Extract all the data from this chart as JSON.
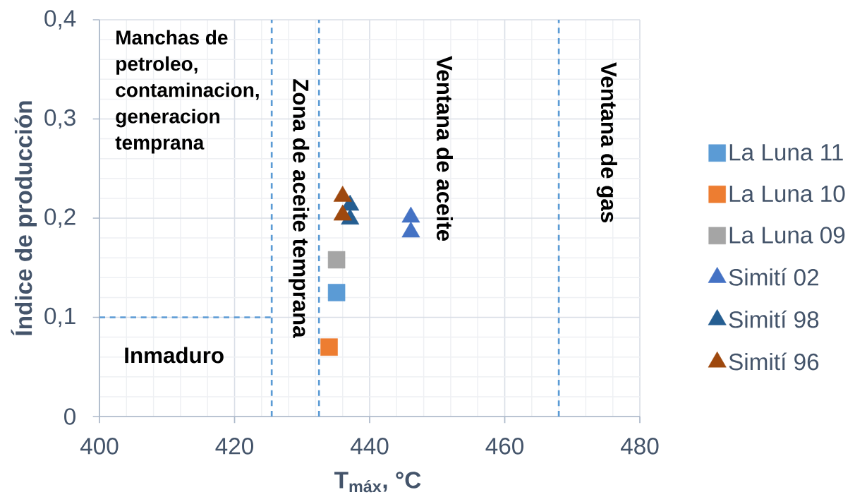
{
  "chart_data": {
    "type": "scatter",
    "xlabel": "T$_{máx}$, °C",
    "ylabel": "Índice de producción",
    "xlim": [
      400,
      480
    ],
    "xticks": [
      400,
      {
        "value": 404,
        "label": null
      },
      {
        "value": 408,
        "label": null
      },
      {
        "value": 412,
        "label": null
      },
      {
        "value": 416,
        "label": null
      },
      420,
      {
        "value": 424,
        "label": null
      },
      {
        "value": 428,
        "label": null
      },
      {
        "value": 432,
        "label": null
      },
      {
        "value": 436,
        "label": null
      },
      440,
      {
        "value": 444,
        "label": null
      },
      {
        "value": 448,
        "label": null
      },
      {
        "value": 452,
        "label": null
      },
      {
        "value": 456,
        "label": null
      },
      460,
      {
        "value": 464,
        "label": null
      },
      {
        "value": 468,
        "label": null
      },
      {
        "value": 472,
        "label": null
      },
      {
        "value": 476,
        "label": null
      },
      480
    ],
    "ylim": [
      0,
      0.4
    ],
    "yticks": [
      0,
      {
        "value": 0.02,
        "label": null
      },
      {
        "value": 0.04,
        "label": null
      },
      {
        "value": 0.06,
        "label": null
      },
      {
        "value": 0.08,
        "label": null
      },
      {
        "value": 0.1,
        "label": "0,1"
      },
      {
        "value": 0.12,
        "label": null
      },
      {
        "value": 0.14,
        "label": null
      },
      {
        "value": 0.16,
        "label": null
      },
      {
        "value": 0.18,
        "label": null
      },
      {
        "value": 0.2,
        "label": "0,2"
      },
      {
        "value": 0.22,
        "label": null
      },
      {
        "value": 0.24,
        "label": null
      },
      {
        "value": 0.26,
        "label": null
      },
      {
        "value": 0.28,
        "label": null
      },
      {
        "value": 0.3,
        "label": "0,3"
      },
      {
        "value": 0.32,
        "label": null
      },
      {
        "value": 0.34,
        "label": null
      },
      {
        "value": 0.36,
        "label": null
      },
      {
        "value": 0.38,
        "label": null
      },
      {
        "value": 0.4,
        "label": "0,4"
      }
    ],
    "grid": true,
    "legend": "right",
    "series": [
      {
        "name": "La Luna 11",
        "color": "#5b9bd5",
        "marker": "square",
        "x": [
          435.1
        ],
        "values": [
          0.125
        ]
      },
      {
        "name": "La Luna 10",
        "color": "#ed7d31",
        "marker": "square",
        "x": [
          434.0
        ],
        "values": [
          0.07
        ]
      },
      {
        "name": "La Luna 09",
        "color": "#a5a5a5",
        "marker": "square",
        "x": [
          435.1
        ],
        "values": [
          0.158
        ]
      },
      {
        "name": "Simití 02",
        "color": "#4472c4",
        "marker": "triangle",
        "x": [
          446.1,
          446.1
        ],
        "values": [
          0.201,
          0.186
        ]
      },
      {
        "name": "Simití 98",
        "color": "#255e91",
        "marker": "triangle",
        "x": [
          437.1,
          437.1
        ],
        "values": [
          0.213,
          0.199
        ]
      },
      {
        "name": "Simití 96",
        "color": "#9e480e",
        "marker": "triangle",
        "x": [
          436.0,
          436.0
        ],
        "values": [
          0.222,
          0.203
        ]
      },
      {
        "type": "line",
        "color": "#5b9bd5",
        "line_style": "dashed",
        "x": [
          400,
          425.5
        ],
        "values": [
          0.1,
          0.1
        ]
      }
    ],
    "ref_lines": [
      {
        "axis": "x",
        "value": 425.5,
        "color": "#5b9bd5",
        "line_style": "dashed"
      },
      {
        "axis": "x",
        "value": 432.5,
        "color": "#5b9bd5",
        "line_style": "dashed"
      },
      {
        "axis": "x",
        "value": 468,
        "color": "#5b9bd5",
        "line_style": "dashed"
      }
    ],
    "annotations": [
      "Manchas de petroleo, contaminacion, generacion temprana",
      "Inmaduro",
      "Zona de aceite temprana",
      "Ventana de aceite",
      "Ventana de gas"
    ]
  }
}
